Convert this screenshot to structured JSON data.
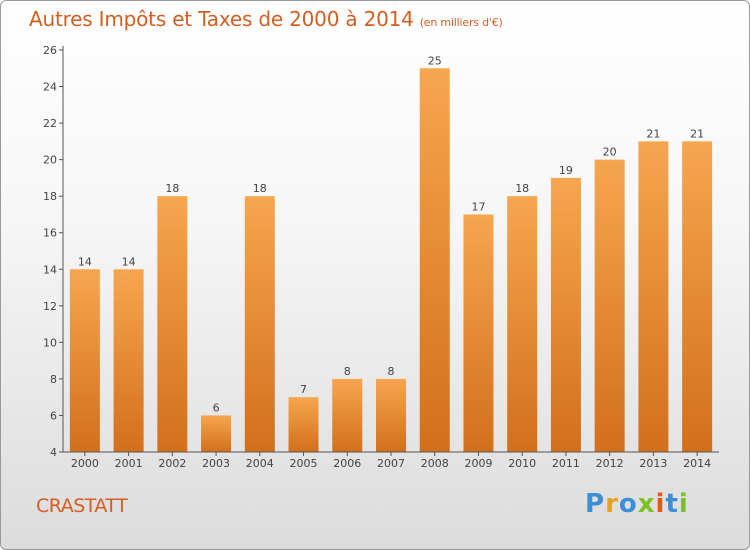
{
  "header": {
    "title": "Autres Impôts et Taxes de 2000 à 2014",
    "unit": "(en milliers d'€)"
  },
  "place_name": "CRASTATT",
  "logo_text": "Proxiti",
  "colors": {
    "title": "#d55e1f",
    "bar_light": "#f6a64f",
    "bar_dark": "#d36f1b",
    "axis": "#555555"
  },
  "chart_data": {
    "type": "bar",
    "title": "Autres Impôts et Taxes de 2000 à 2014",
    "xlabel": "",
    "ylabel": "",
    "categories": [
      "2000",
      "2001",
      "2002",
      "2003",
      "2004",
      "2005",
      "2006",
      "2007",
      "2008",
      "2009",
      "2010",
      "2011",
      "2012",
      "2013",
      "2014"
    ],
    "values": [
      14,
      14,
      18,
      6,
      18,
      7,
      8,
      8,
      25,
      17,
      18,
      19,
      20,
      21,
      21
    ],
    "ylim": [
      4,
      26
    ],
    "yticks": [
      4,
      6,
      8,
      10,
      12,
      14,
      16,
      18,
      20,
      22,
      24,
      26
    ],
    "grid": false,
    "data_labels": true
  }
}
